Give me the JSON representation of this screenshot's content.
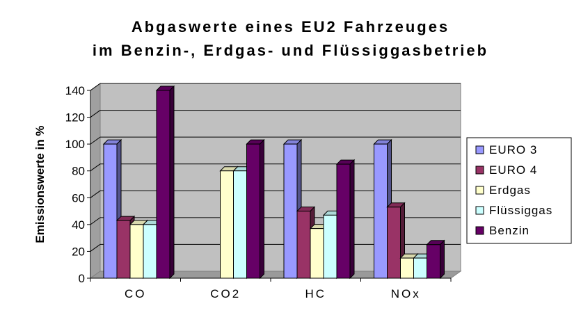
{
  "chart_data": {
    "type": "bar",
    "title": "Abgaswerte eines EU2 Fahrzeuges",
    "subtitle": "im Benzin-, Erdgas- und Flüssiggasbetrieb",
    "ylabel": "Emissionswerte in  %",
    "xlabel": "",
    "ylim": [
      0,
      140
    ],
    "yticks": [
      0,
      20,
      40,
      60,
      80,
      100,
      120,
      140
    ],
    "grid": true,
    "legend_position": "right",
    "categories": [
      "CO",
      "CO2",
      "HC",
      "NOx"
    ],
    "series": [
      {
        "name": "EURO 3",
        "color": "#9999ff",
        "values": [
          100,
          0,
          100,
          100
        ]
      },
      {
        "name": "EURO 4",
        "color": "#993366",
        "values": [
          43,
          0,
          50,
          53
        ]
      },
      {
        "name": "Erdgas",
        "color": "#ffffcc",
        "values": [
          40,
          80,
          37,
          15
        ]
      },
      {
        "name": "Flüssiggas",
        "color": "#ccffff",
        "values": [
          40,
          80,
          47,
          15
        ]
      },
      {
        "name": "Benzin",
        "color": "#660066",
        "values": [
          140,
          100,
          85,
          25
        ]
      }
    ]
  }
}
